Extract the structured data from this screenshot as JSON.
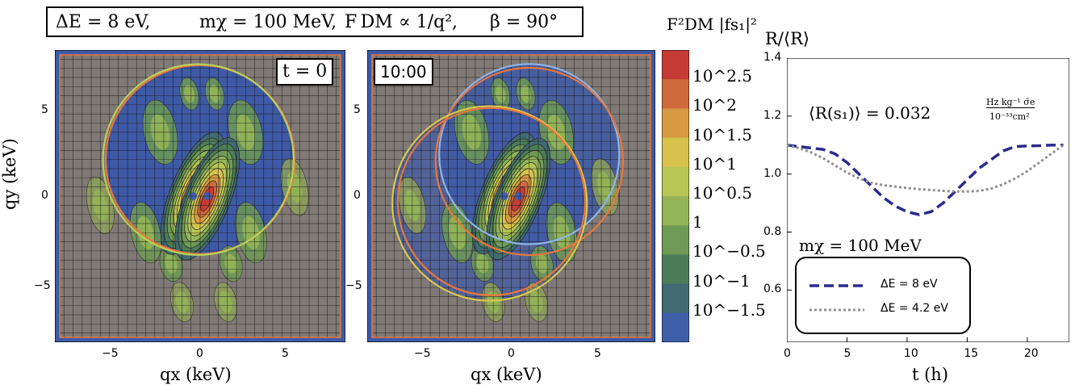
{
  "header": {
    "delta_e": "ΔE = 8 eV,",
    "m_chi": "mχ = 100 MeV,",
    "f_dm": "F DM ∝ 1/q²,",
    "beta": "β = 90°"
  },
  "left_panels": {
    "panel_a_tag": "t = 0",
    "panel_b_tag": "10:00",
    "xlabel": "qx (keV)",
    "ylabel": "qy (keV)",
    "x_ticks": [
      "−5",
      "0",
      "5"
    ],
    "y_ticks": [
      "5",
      "0",
      "−5"
    ]
  },
  "colorbar": {
    "title": "F²DM |fs₁|²",
    "labels": [
      "10^2.5",
      "10^2",
      "10^1.5",
      "10^1",
      "10^0.5",
      "1",
      "10^−0.5",
      "10^−1",
      "10^−1.5"
    ],
    "colors": [
      "#c63c35",
      "#cf6a3c",
      "#d99a45",
      "#d7c24d",
      "#b8c654",
      "#93b557",
      "#6f9a55",
      "#4d7d58",
      "#426a72",
      "#3f5ea8"
    ]
  },
  "right_panel": {
    "ylabel": "R/⟨R⟩",
    "annotation": "⟨R(s₁)⟩ = 0.032",
    "annotation_num": "Hz kg⁻¹ σ̄e",
    "annotation_den": "10⁻³³cm²",
    "mass_label": "mχ = 100 MeV",
    "x_ticks": [
      "0",
      "5",
      "10",
      "15",
      "20"
    ],
    "y_ticks": [
      "1.4",
      "1.2",
      "1.0",
      "0.8",
      "0.6"
    ]
  },
  "chart_data": [
    {
      "type": "heatmap",
      "panel": "t = 0",
      "xlabel": "qx (keV)",
      "ylabel": "qy (keV)",
      "xlim": [
        -8,
        8
      ],
      "ylim": [
        -8,
        8
      ],
      "circles": [
        {
          "color": "#e8763c",
          "cx": 0,
          "cy": 2.0,
          "r": 5.2
        },
        {
          "color": "#b9d05a",
          "cx": -0.1,
          "cy": 2.0,
          "r": 5.25
        }
      ]
    },
    {
      "type": "heatmap",
      "panel": "10:00",
      "xlabel": "qx (keV)",
      "ylabel": "qy (keV)",
      "xlim": [
        -8,
        8
      ],
      "ylim": [
        -8,
        8
      ],
      "circles": [
        {
          "color": "#8fb4e6",
          "cx": 1.0,
          "cy": 2.3,
          "r": 5.0
        },
        {
          "color": "#e8763c",
          "cx": 1.0,
          "cy": 1.9,
          "r": 5.2
        },
        {
          "color": "#d9c94e",
          "cx": -1.2,
          "cy": -0.4,
          "r": 5.4
        },
        {
          "color": "#e8763c",
          "cx": -1.1,
          "cy": -0.3,
          "r": 5.2
        }
      ]
    },
    {
      "type": "line",
      "xlabel": "t (h)",
      "ylabel": "R/⟨R⟩",
      "xlim": [
        0,
        23.5
      ],
      "ylim": [
        0.42,
        1.4
      ],
      "legend": "bottom-left",
      "series": [
        {
          "name": "ΔE = 8 eV",
          "color": "#2b2a8f",
          "style": "dashed",
          "x": [
            0,
            1,
            2,
            3,
            4,
            5,
            6,
            7,
            8,
            9,
            10,
            11,
            12,
            13,
            14,
            15,
            16,
            17,
            18,
            19,
            20,
            21,
            22,
            23
          ],
          "y": [
            1.1,
            1.095,
            1.09,
            1.085,
            1.07,
            1.04,
            1.0,
            0.96,
            0.92,
            0.89,
            0.87,
            0.86,
            0.87,
            0.9,
            0.94,
            0.98,
            1.02,
            1.05,
            1.08,
            1.095,
            1.097,
            1.098,
            1.1,
            1.1
          ]
        },
        {
          "name": "ΔE = 4.2 eV",
          "color": "#909090",
          "style": "dotted",
          "x": [
            0,
            1,
            2,
            3,
            4,
            5,
            6,
            7,
            8,
            9,
            10,
            11,
            12,
            13,
            14,
            15,
            16,
            17,
            18,
            19,
            20,
            21,
            22,
            23
          ],
          "y": [
            1.1,
            1.09,
            1.075,
            1.055,
            1.03,
            1.005,
            0.985,
            0.97,
            0.962,
            0.957,
            0.952,
            0.948,
            0.945,
            0.942,
            0.94,
            0.94,
            0.942,
            0.95,
            0.965,
            0.985,
            1.01,
            1.04,
            1.07,
            1.1
          ]
        }
      ]
    }
  ]
}
